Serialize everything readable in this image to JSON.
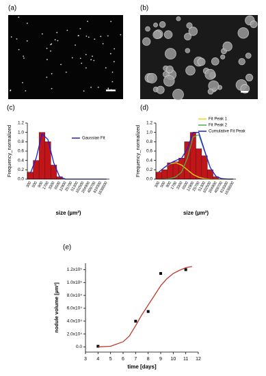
{
  "images": [
    {
      "label": "(a)"
    },
    {
      "label": "(b)"
    }
  ],
  "chart_data": [
    {
      "type": "bar",
      "label": "(c)",
      "xlabel": "size (µm²)",
      "ylabel": "Frequency_normalized",
      "categories": [
        "300",
        "500",
        "900",
        "1700",
        "3300",
        "6500",
        "12900",
        "25700",
        "51300",
        "102500",
        "204900",
        "409700",
        "819300",
        "1638500"
      ],
      "ylim": [
        0,
        1.2
      ],
      "yticks": [
        {
          "value": 0,
          "label": "0.0"
        },
        0.2,
        0.4,
        0.6,
        0.8,
        {
          "value": 1,
          "label": "1.0"
        },
        1.2
      ],
      "legend": "upper right",
      "series": [
        {
          "kind": "bar",
          "color": "#c0161a",
          "values": [
            0.15,
            0.4,
            1.0,
            0.8,
            0.3,
            0.05,
            0,
            0,
            0,
            0,
            0,
            0,
            0,
            0
          ]
        },
        {
          "kind": "line",
          "name": "Gaussian Fit",
          "color": "#1f1fd6",
          "values": [
            0.12,
            0.45,
            0.97,
            0.85,
            0.35,
            0.05,
            0,
            0,
            0,
            0,
            0,
            0,
            0,
            0
          ]
        }
      ]
    },
    {
      "type": "bar",
      "label": "(d)",
      "xlabel": "size (µm²)",
      "ylabel": "Frequency_normalized",
      "categories": [
        "300",
        "500",
        "900",
        "1700",
        "3300",
        "6500",
        "12900",
        "25700",
        "51300",
        "102500",
        "204900",
        "409700",
        "819300",
        "1638500"
      ],
      "ylim": [
        0,
        1.2
      ],
      "yticks": [
        {
          "value": 0,
          "label": "0.0"
        },
        0.2,
        0.4,
        0.6,
        0.8,
        {
          "value": 1,
          "label": "1.0"
        },
        1.2
      ],
      "legend": "upper right",
      "series": [
        {
          "kind": "bar",
          "color": "#c0161a",
          "values": [
            0.15,
            0.2,
            0.35,
            0.37,
            0.45,
            0.8,
            1.0,
            0.65,
            0.5,
            0.2,
            0.05,
            0,
            0,
            0
          ]
        },
        {
          "kind": "line",
          "name": "Fit Peak 1",
          "color": "#e8d81a",
          "values": [
            0.15,
            0.25,
            0.33,
            0.35,
            0.3,
            0.2,
            0.1,
            0.04,
            0.01,
            0,
            0,
            0,
            0,
            0
          ]
        },
        {
          "kind": "line",
          "name": "Fit Peak 2",
          "color": "#4caf50",
          "values": [
            0,
            0,
            0.01,
            0.05,
            0.15,
            0.45,
            0.9,
            0.95,
            0.6,
            0.25,
            0.06,
            0.01,
            0,
            0
          ]
        },
        {
          "kind": "line",
          "name": "Cumulative Fit Peak",
          "color": "#1f1fd6",
          "values": [
            0.15,
            0.25,
            0.34,
            0.4,
            0.45,
            0.65,
            1.0,
            1.0,
            0.62,
            0.25,
            0.06,
            0.01,
            0,
            0
          ]
        }
      ]
    },
    {
      "type": "scatter",
      "label": "(e)",
      "xlabel": "time [days]",
      "ylabel": "nodule volume [µm³]",
      "xlim": [
        3,
        12
      ],
      "xticks": [
        3,
        4,
        5,
        6,
        7,
        8,
        9,
        10,
        11,
        12
      ],
      "ylim": [
        -8000,
        130000
      ],
      "yticks": [
        {
          "value": 0,
          "label": "0.0"
        },
        {
          "value": 20000,
          "label": "2.0x10⁴"
        },
        {
          "value": 40000,
          "label": "4.0x10⁴"
        },
        {
          "value": 60000,
          "label": "6.0x10⁴"
        },
        {
          "value": 80000,
          "label": "8.0x10⁴"
        },
        {
          "value": 100000,
          "label": "1.0x10⁵"
        },
        {
          "value": 120000,
          "label": "1.2x10⁵"
        }
      ],
      "series": [
        {
          "kind": "scatter",
          "color": "#000000",
          "x": [
            4,
            7,
            8,
            9,
            11
          ],
          "values": [
            1000,
            40000,
            55000,
            114000,
            120000
          ]
        },
        {
          "kind": "line",
          "color": "#c0392b",
          "x": [
            4,
            5,
            6,
            6.5,
            7,
            7.5,
            8,
            8.5,
            9,
            9.5,
            10,
            10.5,
            11,
            11.5
          ],
          "values": [
            0,
            1000,
            8000,
            17000,
            33000,
            50000,
            65000,
            80000,
            95000,
            106000,
            114000,
            119000,
            123000,
            125000
          ]
        }
      ]
    }
  ]
}
